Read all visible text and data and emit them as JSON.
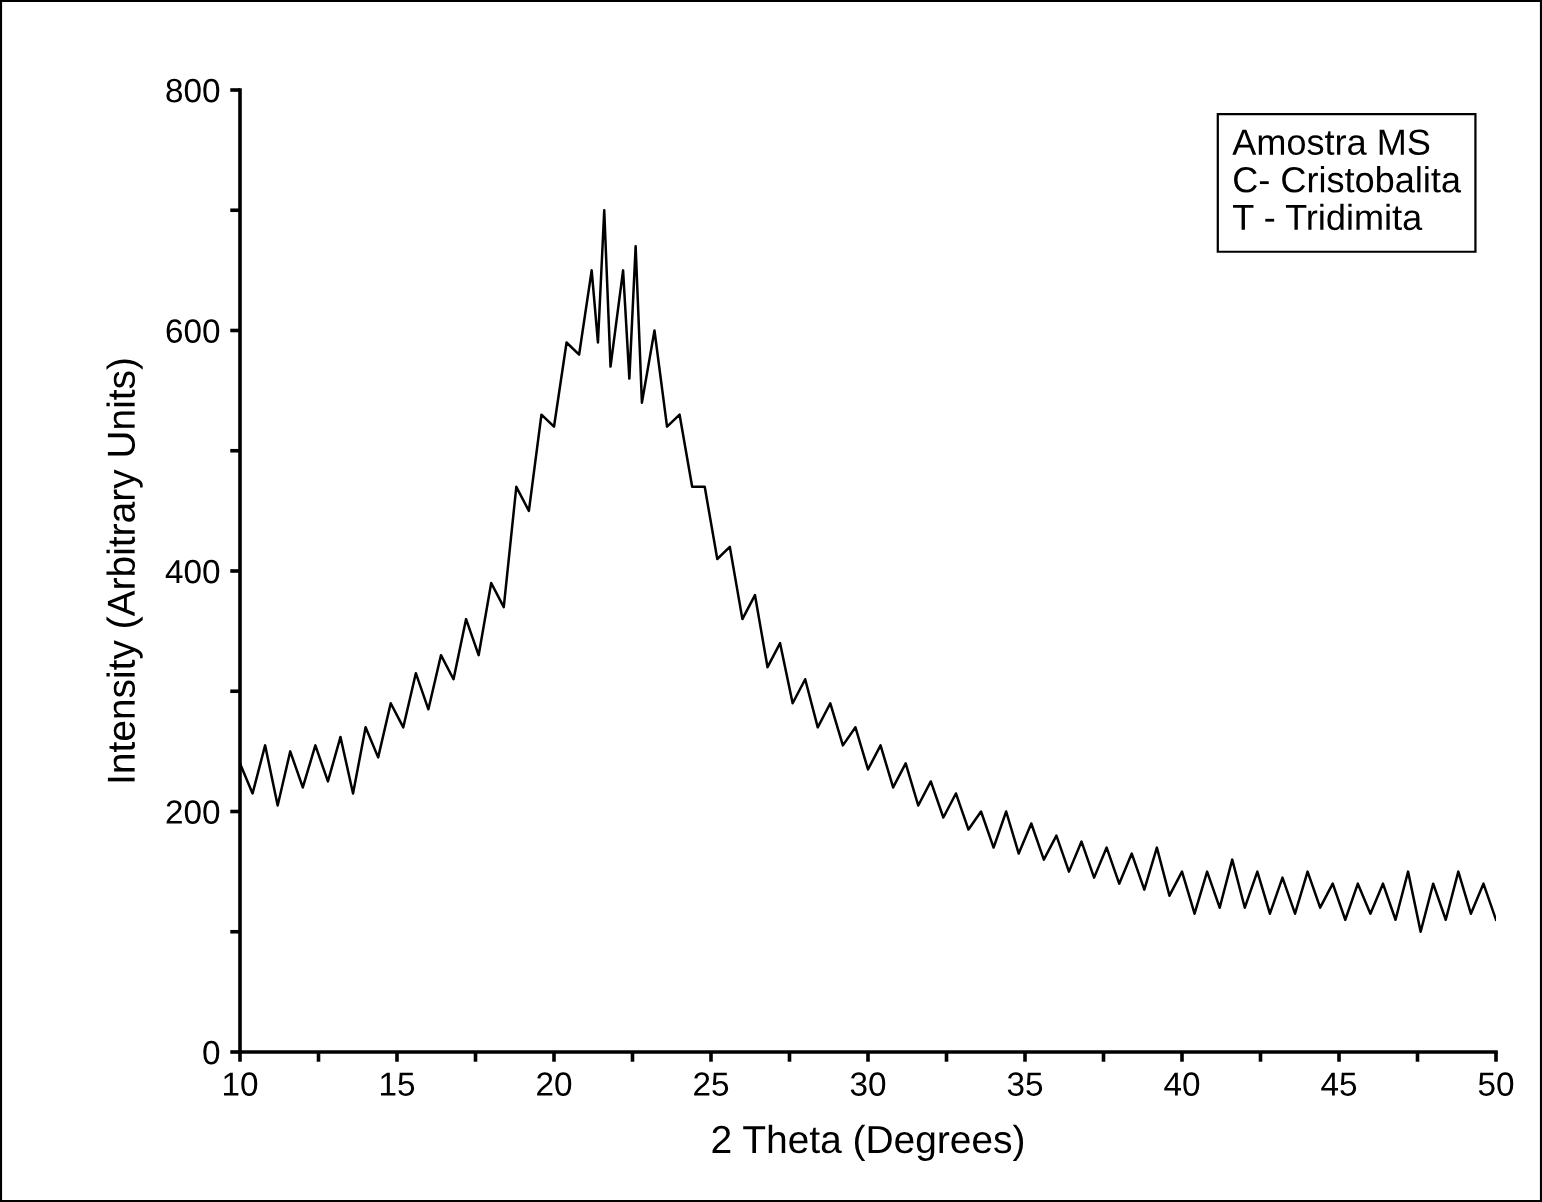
{
  "chart_data": {
    "type": "line",
    "xlabel": "2 Theta (Degrees)",
    "ylabel": "Intensity (Arbitrary Units)",
    "annotations": [
      "Amostra MS\nC- Cristobalita\nT - Tridimita"
    ],
    "xlim": [
      10,
      50
    ],
    "ylim": [
      0,
      800
    ],
    "xticks": [
      10,
      {
        "value": 12.5,
        "label": null
      },
      15,
      {
        "value": 17.5,
        "label": null
      },
      20,
      {
        "value": 22.5,
        "label": null
      },
      25,
      {
        "value": 27.5,
        "label": null
      },
      30,
      {
        "value": 32.5,
        "label": null
      },
      35,
      {
        "value": 37.5,
        "label": null
      },
      40,
      {
        "value": 42.5,
        "label": null
      },
      45,
      {
        "value": 47.5,
        "label": null
      },
      50
    ],
    "yticks": [
      0,
      {
        "value": 100,
        "label": null
      },
      200,
      {
        "value": 300,
        "label": null
      },
      400,
      {
        "value": 500,
        "label": null
      },
      600,
      {
        "value": 700,
        "label": null
      },
      800
    ],
    "grid": false,
    "legend": false,
    "series": [
      {
        "color": "#000000",
        "x": [
          10,
          10.4,
          10.8,
          11.2,
          11.6,
          12,
          12.4,
          12.8,
          13.2,
          13.6,
          14,
          14.4,
          14.8,
          15.2,
          15.6,
          16,
          16.4,
          16.8,
          17.2,
          17.6,
          18,
          18.4,
          18.8,
          19.2,
          19.6,
          20,
          20.4,
          20.8,
          21.2,
          21.4,
          21.6,
          21.8,
          22.2,
          22.4,
          22.6,
          22.8,
          23.2,
          23.6,
          24,
          24.4,
          24.8,
          25.2,
          25.6,
          26,
          26.4,
          26.8,
          27.2,
          27.6,
          28,
          28.4,
          28.8,
          29.2,
          29.6,
          30,
          30.4,
          30.8,
          31.2,
          31.6,
          32,
          32.4,
          32.8,
          33.2,
          33.6,
          34,
          34.4,
          34.8,
          35.2,
          35.6,
          36,
          36.4,
          36.8,
          37.2,
          37.6,
          38,
          38.4,
          38.8,
          39.2,
          39.6,
          40,
          40.4,
          40.8,
          41.2,
          41.6,
          42,
          42.4,
          42.8,
          43.2,
          43.6,
          44,
          44.4,
          44.8,
          45.2,
          45.6,
          46,
          46.4,
          46.8,
          47.2,
          47.6,
          48,
          48.4,
          48.8,
          49.2,
          49.6,
          50
        ],
        "values": [
          240,
          215,
          255,
          205,
          250,
          220,
          255,
          225,
          262,
          215,
          270,
          245,
          290,
          270,
          315,
          285,
          330,
          310,
          360,
          330,
          390,
          370,
          470,
          450,
          530,
          520,
          590,
          580,
          650,
          590,
          700,
          570,
          650,
          560,
          670,
          540,
          600,
          520,
          530,
          470,
          470,
          410,
          420,
          360,
          380,
          320,
          340,
          290,
          310,
          270,
          290,
          255,
          270,
          235,
          255,
          220,
          240,
          205,
          225,
          195,
          215,
          185,
          200,
          170,
          200,
          165,
          190,
          160,
          180,
          150,
          175,
          145,
          170,
          140,
          165,
          135,
          170,
          130,
          150,
          115,
          150,
          120,
          160,
          120,
          150,
          115,
          145,
          115,
          150,
          120,
          140,
          110,
          140,
          115,
          140,
          110,
          150,
          100,
          140,
          110,
          150,
          115,
          140,
          110
        ]
      }
    ]
  }
}
